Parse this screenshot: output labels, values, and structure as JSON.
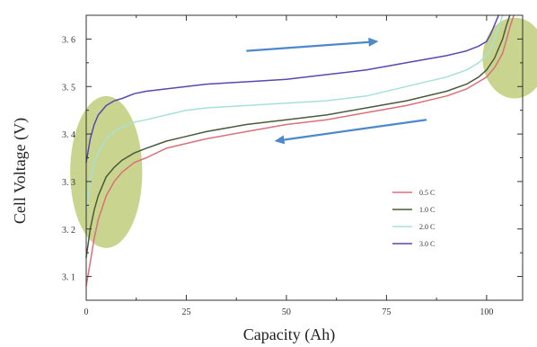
{
  "chart_data": {
    "type": "line",
    "title": "",
    "xlabel": "Capacity (Ah)",
    "ylabel": "Cell Voltage (V)",
    "xlim": [
      0,
      109
    ],
    "ylim": [
      3.05,
      3.65
    ],
    "x_ticks": [
      0,
      25,
      50,
      75,
      100
    ],
    "x_tick_labels": [
      "0",
      "25",
      "50",
      "75",
      "100"
    ],
    "y_ticks": [
      3.1,
      3.2,
      3.3,
      3.4,
      3.5,
      3.6
    ],
    "y_tick_labels": [
      "3. 1",
      "3. 2",
      "3. 3",
      "3. 4",
      "3. 5",
      "3. 6"
    ],
    "grid": false,
    "legend_position": "lower-right",
    "series": [
      {
        "name": "0.5 C",
        "color": "#d9707a",
        "x": [
          0,
          1,
          2,
          3,
          5,
          7,
          9,
          12,
          15,
          20,
          25,
          30,
          40,
          50,
          60,
          70,
          80,
          90,
          95,
          98,
          100,
          102,
          104,
          105,
          106,
          106.8
        ],
        "y": [
          3.08,
          3.13,
          3.18,
          3.22,
          3.27,
          3.3,
          3.32,
          3.34,
          3.35,
          3.37,
          3.38,
          3.39,
          3.405,
          3.42,
          3.43,
          3.445,
          3.46,
          3.48,
          3.495,
          3.51,
          3.52,
          3.54,
          3.57,
          3.6,
          3.63,
          3.65
        ]
      },
      {
        "name": "1.0 C",
        "color": "#4a5a3a",
        "x": [
          0,
          1,
          2,
          3,
          5,
          7,
          9,
          12,
          15,
          20,
          25,
          30,
          40,
          50,
          60,
          70,
          80,
          90,
          95,
          98,
          100,
          102,
          103,
          104,
          105,
          105.8
        ],
        "y": [
          3.14,
          3.2,
          3.24,
          3.27,
          3.31,
          3.33,
          3.345,
          3.36,
          3.37,
          3.385,
          3.395,
          3.405,
          3.42,
          3.43,
          3.44,
          3.455,
          3.47,
          3.49,
          3.505,
          3.52,
          3.535,
          3.56,
          3.58,
          3.6,
          3.63,
          3.65
        ]
      },
      {
        "name": "2.0 C",
        "color": "#a8e0d8",
        "x": [
          0,
          1,
          2,
          3,
          5,
          7,
          9,
          12,
          15,
          20,
          25,
          30,
          40,
          50,
          60,
          70,
          80,
          90,
          95,
          98,
          100,
          101,
          102,
          103,
          104
        ],
        "y": [
          3.24,
          3.3,
          3.34,
          3.36,
          3.39,
          3.405,
          3.415,
          3.425,
          3.43,
          3.44,
          3.45,
          3.455,
          3.46,
          3.465,
          3.47,
          3.48,
          3.5,
          3.52,
          3.535,
          3.55,
          3.565,
          3.58,
          3.6,
          3.625,
          3.65
        ]
      },
      {
        "name": "3.0 C",
        "color": "#5848b0",
        "x": [
          0,
          1,
          2,
          3,
          5,
          7,
          9,
          12,
          15,
          20,
          25,
          30,
          40,
          50,
          60,
          70,
          80,
          90,
          95,
          98,
          100,
          101,
          102,
          103
        ],
        "y": [
          3.34,
          3.39,
          3.42,
          3.44,
          3.46,
          3.47,
          3.475,
          3.485,
          3.49,
          3.495,
          3.5,
          3.505,
          3.51,
          3.515,
          3.525,
          3.535,
          3.55,
          3.565,
          3.575,
          3.585,
          3.595,
          3.61,
          3.63,
          3.65
        ]
      }
    ],
    "annotations": [
      {
        "type": "arrow",
        "direction": "right",
        "from": [
          40,
          3.575
        ],
        "to": [
          73,
          3.595
        ],
        "color": "#4d88cc"
      },
      {
        "type": "arrow",
        "direction": "left",
        "from": [
          85,
          3.43
        ],
        "to": [
          47,
          3.385
        ],
        "color": "#4d88cc"
      },
      {
        "type": "ellipse",
        "center": [
          5,
          3.32
        ],
        "radii": [
          9,
          0.16
        ],
        "color": "#a8bc48"
      },
      {
        "type": "ellipse",
        "center": [
          107,
          3.56
        ],
        "radii": [
          8,
          0.085
        ],
        "color": "#a8bc48"
      }
    ]
  }
}
